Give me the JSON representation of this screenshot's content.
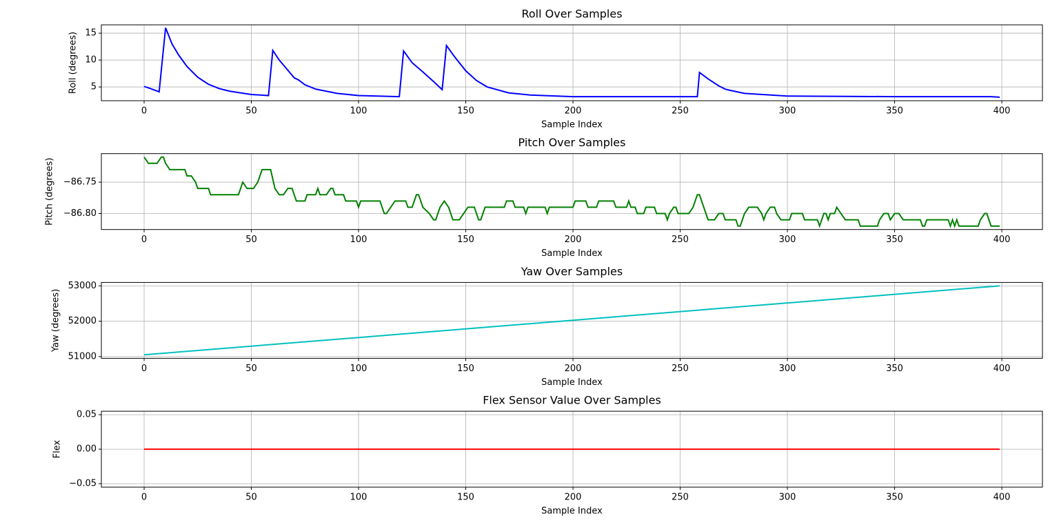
{
  "chart_data": [
    {
      "type": "line",
      "title": "Roll Over Samples",
      "xlabel": "Sample Index",
      "ylabel": "Roll (degrees)",
      "color": "#0000ff",
      "grid": true,
      "xlim": [
        -19.95,
        418.95
      ],
      "xticks": [
        0,
        50,
        100,
        150,
        200,
        250,
        300,
        350,
        400
      ],
      "ylim": [
        2.44,
        16.55
      ],
      "yticks": [
        5,
        10,
        15
      ],
      "x": [
        0,
        3,
        7,
        10,
        13,
        16,
        20,
        25,
        30,
        35,
        40,
        50,
        58,
        60,
        63,
        66,
        70,
        72,
        75,
        80,
        90,
        100,
        119,
        121,
        125,
        130,
        135,
        139,
        141,
        145,
        150,
        155,
        160,
        170,
        180,
        200,
        250,
        258,
        259,
        263,
        268,
        271,
        273,
        280,
        300,
        350,
        395,
        399
      ],
      "values": [
        5.1,
        4.7,
        4.1,
        16,
        13,
        11,
        8.8,
        6.8,
        5.5,
        4.7,
        4.2,
        3.6,
        3.4,
        11.8,
        10,
        8.6,
        6.7,
        6.3,
        5.4,
        4.6,
        3.8,
        3.4,
        3.2,
        11.7,
        9.5,
        7.8,
        6,
        4.5,
        12.7,
        10.5,
        8,
        6.2,
        5,
        3.9,
        3.5,
        3.2,
        3.2,
        3.2,
        7.7,
        6.5,
        5.2,
        4.6,
        4.4,
        3.8,
        3.3,
        3.2,
        3.2,
        3.1
      ]
    },
    {
      "type": "line",
      "title": "Pitch Over Samples",
      "xlabel": "Sample Index",
      "ylabel": "Pitch (degrees)",
      "color": "#008000",
      "grid": true,
      "xlim": [
        -19.95,
        418.95
      ],
      "xticks": [
        0,
        50,
        100,
        150,
        200,
        250,
        300,
        350,
        400
      ],
      "ylim": [
        -86.8255,
        -86.7045
      ],
      "yticks": [
        {
          "value": -86.8,
          "label": "−86.80"
        },
        {
          "value": -86.75,
          "label": "−86.75"
        }
      ],
      "x": [
        0,
        2,
        6,
        8,
        9,
        10,
        12,
        19,
        20,
        22,
        24,
        25,
        30,
        31,
        44,
        46,
        48,
        51,
        53,
        55,
        59,
        61,
        63,
        65,
        67,
        69,
        71,
        75,
        76,
        80,
        81,
        82,
        85,
        87,
        88,
        89,
        93,
        94,
        99,
        100,
        101,
        110,
        112,
        113,
        115,
        117,
        122,
        123,
        125,
        126,
        127,
        128,
        130,
        133,
        135,
        136,
        138,
        140,
        142,
        144,
        147,
        149,
        151,
        154,
        156,
        157,
        159,
        168,
        169,
        172,
        173,
        177,
        178,
        179,
        187,
        188,
        189,
        200,
        201,
        206,
        207,
        211,
        212,
        219,
        220,
        225,
        226,
        227,
        229,
        230,
        233,
        234,
        238,
        239,
        243,
        244,
        245,
        247,
        248,
        249,
        254,
        256,
        258,
        259,
        261,
        263,
        266,
        268,
        270,
        271,
        276,
        277,
        278,
        280,
        282,
        286,
        288,
        289,
        290,
        292,
        294,
        295,
        297,
        301,
        302,
        307,
        308,
        314,
        315,
        317,
        318,
        319,
        320,
        322,
        323,
        325,
        327,
        333,
        334,
        342,
        343,
        345,
        347,
        348,
        350,
        352,
        354,
        362,
        363,
        364,
        365,
        375,
        376,
        377,
        378,
        379,
        380,
        389,
        390,
        392,
        393,
        395,
        399
      ],
      "values": [
        -86.71,
        -86.72,
        -86.72,
        -86.71,
        -86.71,
        -86.72,
        -86.73,
        -86.73,
        -86.74,
        -86.74,
        -86.75,
        -86.76,
        -86.76,
        -86.77,
        -86.77,
        -86.75,
        -86.76,
        -86.76,
        -86.75,
        -86.73,
        -86.73,
        -86.76,
        -86.77,
        -86.77,
        -86.76,
        -86.76,
        -86.78,
        -86.78,
        -86.77,
        -86.77,
        -86.76,
        -86.77,
        -86.77,
        -86.76,
        -86.76,
        -86.77,
        -86.77,
        -86.78,
        -86.78,
        -86.79,
        -86.78,
        -86.78,
        -86.8,
        -86.8,
        -86.79,
        -86.78,
        -86.78,
        -86.79,
        -86.79,
        -86.78,
        -86.77,
        -86.77,
        -86.79,
        -86.8,
        -86.81,
        -86.81,
        -86.79,
        -86.78,
        -86.79,
        -86.81,
        -86.81,
        -86.8,
        -86.79,
        -86.79,
        -86.81,
        -86.81,
        -86.79,
        -86.79,
        -86.78,
        -86.78,
        -86.79,
        -86.79,
        -86.8,
        -86.79,
        -86.79,
        -86.8,
        -86.79,
        -86.79,
        -86.78,
        -86.78,
        -86.79,
        -86.79,
        -86.78,
        -86.78,
        -86.79,
        -86.79,
        -86.78,
        -86.79,
        -86.79,
        -86.8,
        -86.8,
        -86.79,
        -86.79,
        -86.8,
        -86.8,
        -86.81,
        -86.8,
        -86.79,
        -86.79,
        -86.8,
        -86.8,
        -86.79,
        -86.77,
        -86.77,
        -86.79,
        -86.81,
        -86.81,
        -86.8,
        -86.8,
        -86.81,
        -86.81,
        -86.82,
        -86.82,
        -86.8,
        -86.79,
        -86.79,
        -86.8,
        -86.81,
        -86.8,
        -86.79,
        -86.79,
        -86.8,
        -86.81,
        -86.81,
        -86.8,
        -86.8,
        -86.81,
        -86.81,
        -86.82,
        -86.8,
        -86.8,
        -86.81,
        -86.8,
        -86.8,
        -86.79,
        -86.8,
        -86.81,
        -86.81,
        -86.82,
        -86.82,
        -86.81,
        -86.8,
        -86.8,
        -86.81,
        -86.8,
        -86.8,
        -86.81,
        -86.81,
        -86.82,
        -86.82,
        -86.81,
        -86.81,
        -86.82,
        -86.81,
        -86.82,
        -86.81,
        -86.82,
        -86.82,
        -86.81,
        -86.8,
        -86.8,
        -86.82,
        -86.82
      ]
    },
    {
      "type": "line",
      "title": "Yaw Over Samples",
      "xlabel": "Sample Index",
      "ylabel": "Yaw (degrees)",
      "color": "#00bfbf",
      "grid": true,
      "xlim": [
        -19.95,
        418.95
      ],
      "xticks": [
        0,
        50,
        100,
        150,
        200,
        250,
        300,
        350,
        400
      ],
      "ylim": [
        50950,
        53097
      ],
      "yticks": [
        51000,
        52000,
        53000
      ],
      "x": [
        0,
        399
      ],
      "values": [
        51050,
        53000
      ]
    },
    {
      "type": "line",
      "title": "Flex Sensor Value Over Samples",
      "xlabel": "Sample Index",
      "ylabel": "Flex",
      "color": "#ff0000",
      "grid": true,
      "xlim": [
        -19.95,
        418.95
      ],
      "xticks": [
        0,
        50,
        100,
        150,
        200,
        250,
        300,
        350,
        400
      ],
      "ylim": [
        -0.055,
        0.055
      ],
      "yticks": [
        {
          "value": -0.05,
          "label": "−0.05"
        },
        {
          "value": 0,
          "label": "0.00"
        },
        0.05
      ],
      "x": [
        0,
        399
      ],
      "values": [
        0,
        0
      ]
    }
  ]
}
